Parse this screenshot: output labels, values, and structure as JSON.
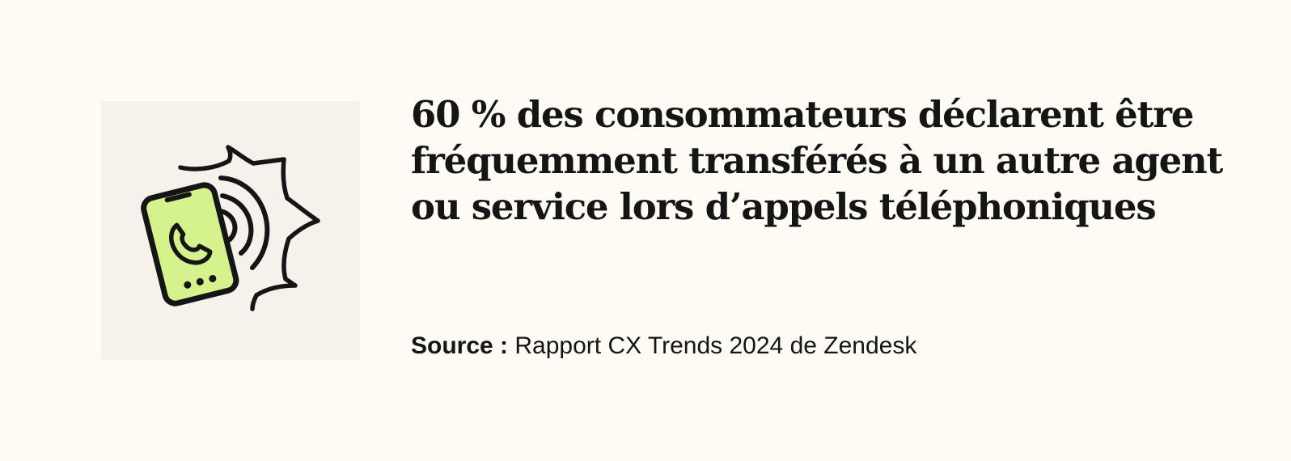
{
  "statistic": {
    "headline_lines": [
      "60 % des consommateurs déclarent être",
      "fréquemment transférés à un autre agent",
      "ou service lors d’appels téléphoniques"
    ]
  },
  "source": {
    "label": "Source :",
    "text": "Rapport CX Trends 2024 de Zendesk"
  },
  "illustration": {
    "icon": "ringing-phone-icon",
    "screen_color": "#d5f28c",
    "outline_color": "#151515",
    "box_color": "#f6f1ea"
  },
  "colors": {
    "background": "#fefbf4",
    "text": "#151515"
  }
}
